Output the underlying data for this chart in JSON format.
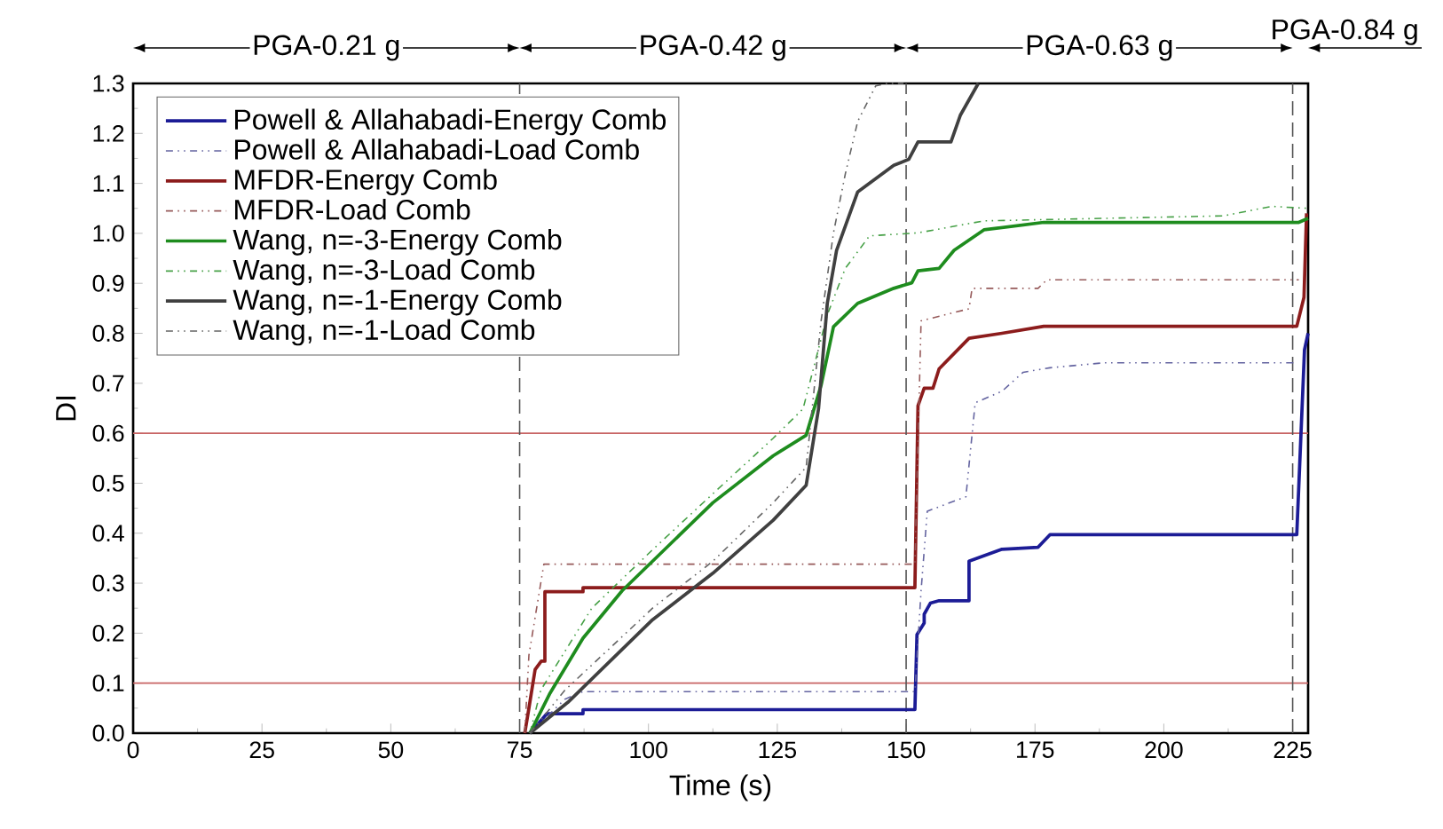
{
  "chart_data": {
    "type": "line",
    "xlabel": "Time (s)",
    "ylabel": "DI",
    "xlim": [
      0,
      228
    ],
    "ylim": [
      0,
      1.3
    ],
    "xticks": [
      0,
      25,
      50,
      75,
      100,
      125,
      150,
      175,
      200,
      225
    ],
    "yticks": [
      {
        "value": 0,
        "label": "0.0"
      },
      {
        "value": 0.1,
        "label": "0.1"
      },
      {
        "value": 0.2,
        "label": "0.2"
      },
      {
        "value": 0.3,
        "label": "0.3"
      },
      {
        "value": 0.4,
        "label": "0.4"
      },
      {
        "value": 0.5,
        "label": "0.5"
      },
      {
        "value": 0.6,
        "label": "0.6"
      },
      {
        "value": 0.7,
        "label": "0.7"
      },
      {
        "value": 0.8,
        "label": "0.8"
      },
      {
        "value": 0.9,
        "label": "0.9"
      },
      {
        "value": 1.0,
        "label": "1.0"
      },
      {
        "value": 1.1,
        "label": "1.1"
      },
      {
        "value": 1.2,
        "label": "1.2"
      },
      {
        "value": 1.3,
        "label": "1.3"
      }
    ],
    "grid": false,
    "legend": "top left",
    "marker": "none",
    "ref_lines": [
      {
        "axis": "y",
        "value": 0.1,
        "color": "#c86464",
        "line_style": "solid"
      },
      {
        "axis": "y",
        "value": 0.6,
        "color": "#c86464",
        "line_style": "solid"
      },
      {
        "axis": "x",
        "value": 75,
        "color": "#555555",
        "line_style": "dashed"
      },
      {
        "axis": "x",
        "value": 150,
        "color": "#555555",
        "line_style": "dashed"
      },
      {
        "axis": "x",
        "value": 225,
        "color": "#555555",
        "line_style": "dashed"
      }
    ],
    "annotations": [
      "PGA-0.21 g",
      "PGA-0.42 g",
      "PGA-0.63 g",
      "PGA-0.84 g"
    ],
    "series": [
      {
        "name": "Powell & Allahabadi-Energy Comb",
        "color": "#1c1c96",
        "line_style": "solid",
        "x": [
          77,
          80.3,
          87.3,
          87.3,
          151.7,
          152.1,
          153.5,
          153.5,
          154.7,
          156.4,
          162.2,
          162.2,
          168.6,
          175.6,
          177.9,
          225.8,
          227.3,
          228
        ],
        "values": [
          0,
          0.039,
          0.039,
          0.047,
          0.047,
          0.197,
          0.22,
          0.238,
          0.26,
          0.265,
          0.265,
          0.344,
          0.368,
          0.372,
          0.397,
          0.397,
          0.767,
          0.8
        ]
      },
      {
        "name": "Powell & Allahabadi-Load Comb",
        "color": "#6464a0",
        "line_style": "dashdotted",
        "x": [
          77,
          83.8,
          87.3,
          151.7,
          152.9,
          154.1,
          161.6,
          163.4,
          168.6,
          172.7,
          177.9,
          188.4,
          225.8
        ],
        "values": [
          0,
          0.068,
          0.083,
          0.083,
          0.285,
          0.444,
          0.473,
          0.661,
          0.684,
          0.722,
          0.731,
          0.741,
          0.741
        ]
      },
      {
        "name": "MFDR-Energy Comb",
        "color": "#8c1c1c",
        "line_style": "solid",
        "x": [
          76,
          76.8,
          78,
          79.2,
          79.9,
          79.9,
          87.3,
          87.3,
          151.7,
          152.3,
          153.5,
          155.2,
          156.4,
          162.2,
          168.6,
          176.7,
          225.8,
          227.2,
          227.7
        ],
        "values": [
          0,
          0.05,
          0.127,
          0.144,
          0.144,
          0.283,
          0.283,
          0.291,
          0.291,
          0.655,
          0.69,
          0.69,
          0.729,
          0.79,
          0.8,
          0.814,
          0.814,
          0.872,
          1.04
        ]
      },
      {
        "name": "MFDR-Load Comb",
        "color": "#965a5a",
        "line_style": "dashdotted",
        "x": [
          76,
          76.8,
          79.7,
          151.7,
          152.9,
          162.2,
          162.8,
          175.6,
          177.3,
          226.2
        ],
        "values": [
          0,
          0.156,
          0.338,
          0.338,
          0.825,
          0.849,
          0.89,
          0.89,
          0.907,
          0.907
        ]
      },
      {
        "name": "Wang, n=-3-Energy Comb",
        "color": "#1e8c1e",
        "line_style": "solid",
        "x": [
          77,
          80.9,
          87.3,
          94.9,
          100.8,
          112.5,
          124.2,
          130.6,
          133.5,
          135.9,
          140.6,
          147.6,
          151.1,
          152.3,
          156.4,
          159.3,
          165.1,
          176.7,
          226.2,
          228
        ],
        "values": [
          0,
          0.08,
          0.19,
          0.285,
          0.344,
          0.461,
          0.555,
          0.596,
          0.696,
          0.813,
          0.86,
          0.89,
          0.901,
          0.925,
          0.93,
          0.966,
          1.007,
          1.022,
          1.022,
          1.03
        ]
      },
      {
        "name": "Wang, n=-3-Load Comb",
        "color": "#46a046",
        "line_style": "dashdotted",
        "x": [
          77,
          79.1,
          89,
          100.8,
          112.5,
          124.2,
          130,
          134.7,
          138.2,
          142.9,
          152.3,
          165.1,
          188.4,
          211.6,
          220.9,
          228
        ],
        "values": [
          0,
          0.086,
          0.25,
          0.367,
          0.479,
          0.59,
          0.649,
          0.837,
          0.93,
          0.995,
          1.001,
          1.025,
          1.03,
          1.035,
          1.054,
          1.05
        ]
      },
      {
        "name": "Wang, n=-1-Energy Comb",
        "color": "#404040",
        "line_style": "solid",
        "x": [
          77,
          84.4,
          100.8,
          112.5,
          124.2,
          130.6,
          133,
          134.7,
          136.5,
          140.6,
          147.6,
          150.5,
          152.3,
          158.7,
          160.5,
          164
        ],
        "values": [
          0,
          0.062,
          0.227,
          0.32,
          0.426,
          0.496,
          0.649,
          0.86,
          0.966,
          1.083,
          1.136,
          1.148,
          1.183,
          1.183,
          1.236,
          1.3
        ]
      },
      {
        "name": "Wang, n=-1-Load Comb",
        "color": "#646464",
        "line_style": "dashdotted",
        "x": [
          77,
          83.8,
          100.8,
          112.5,
          124.2,
          130.6,
          133.5,
          135.9,
          138.2,
          140.6,
          144.1,
          146.4,
          149.5
        ],
        "values": [
          0,
          0.086,
          0.25,
          0.344,
          0.461,
          0.532,
          0.825,
          1.001,
          1.119,
          1.224,
          1.295,
          1.3,
          1.3
        ]
      }
    ]
  }
}
